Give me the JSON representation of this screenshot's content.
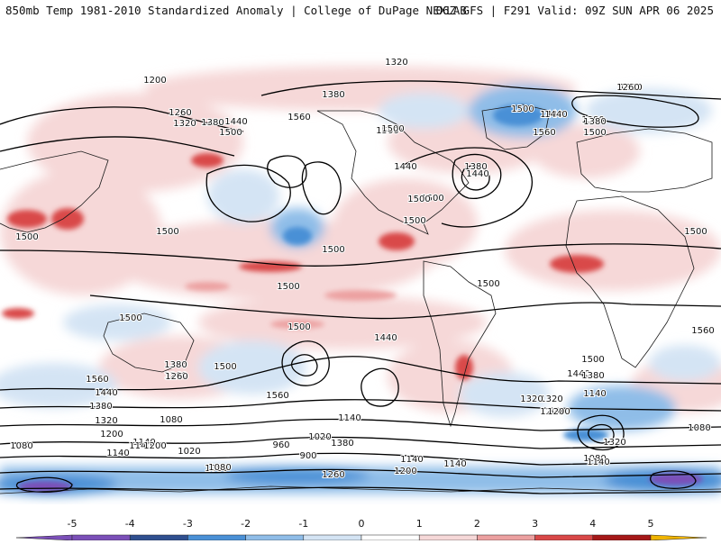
{
  "header": {
    "title": "850mb Temp 1981-2010 Standardized Anomaly | College of DuPage NEXLAB",
    "run_info": "06Z GFS | F291 Valid: 09Z SUN APR 06 2025"
  },
  "colors": {
    "neg5": "#7b4fb8",
    "neg4": "#2f4f8f",
    "neg3": "#4a90d6",
    "neg2": "#8fbde8",
    "neg1": "#d4e4f4",
    "zero": "#ffffff",
    "pos1": "#f6d8d8",
    "pos2": "#eca0a0",
    "pos3": "#d94848",
    "pos4": "#a51818",
    "pos5": "#f0b400",
    "coast": "#1a1a1a",
    "contour": "#000000"
  },
  "legend": {
    "ticks": [
      "-5",
      "-4",
      "-3",
      "-2",
      "-1",
      "0",
      "1",
      "2",
      "3",
      "4",
      "5"
    ]
  },
  "contour_labels": [
    "1320",
    "1200",
    "1260",
    "1320",
    "1380",
    "1440",
    "1500",
    "1560",
    "1500",
    "1440",
    "1380",
    "1500",
    "1500",
    "1440",
    "1500",
    "1380",
    "1560",
    "1500",
    "1380",
    "1440",
    "1500",
    "1260",
    "1440",
    "1380",
    "1500",
    "1500",
    "1500",
    "1500",
    "1500",
    "1500",
    "1500",
    "1500",
    "1560",
    "1500",
    "1380",
    "1260",
    "1500",
    "1440",
    "1500",
    "1560",
    "1440",
    "1500",
    "1380",
    "1320",
    "1200",
    "1140",
    "1080",
    "1140",
    "1200",
    "1320",
    "1140",
    "1380",
    "1260",
    "1140",
    "1080",
    "960",
    "1020",
    "900",
    "1080",
    "1140",
    "1260",
    "1200",
    "1080",
    "1140",
    "1140",
    "1320",
    "1080",
    "1500",
    "1560",
    "1440",
    "1380",
    "1320",
    "1200",
    "1020",
    "1080",
    "1140",
    "1200"
  ]
}
